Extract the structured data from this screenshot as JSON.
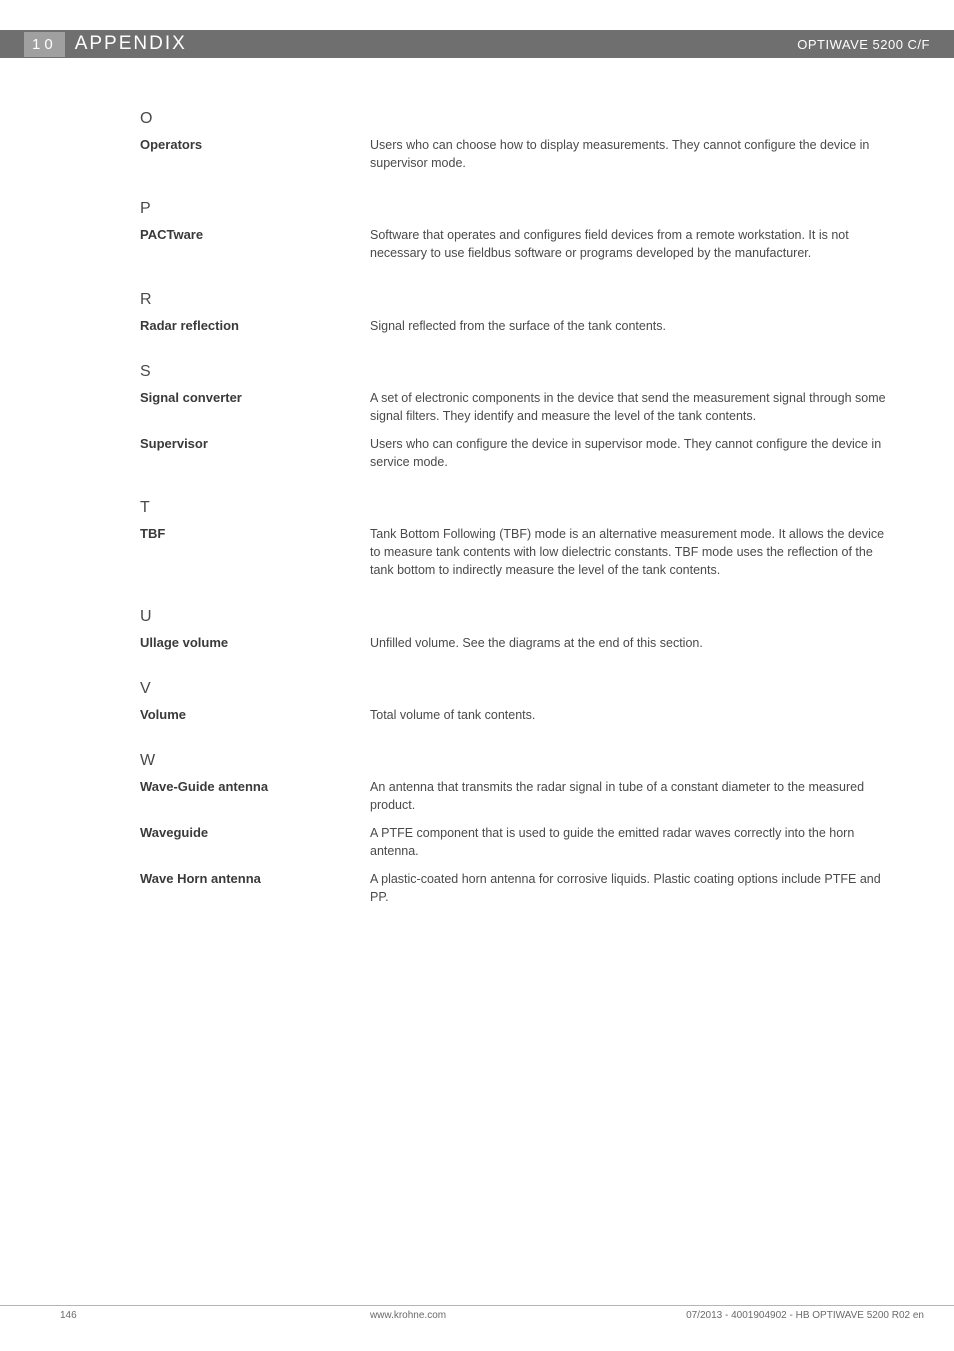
{
  "header": {
    "chapter_number": "10",
    "chapter_title": "APPENDIX",
    "product_name": "OPTIWAVE 5200 C/F"
  },
  "sections": [
    {
      "letter": "O",
      "entries": [
        {
          "term": "Operators",
          "definition": "Users who can choose how to display measurements. They cannot configure the device in supervisor mode."
        }
      ]
    },
    {
      "letter": "P",
      "entries": [
        {
          "term": "PACTware",
          "definition": "Software that operates and configures field devices from a remote workstation. It is not necessary to use fieldbus software or programs developed by the manufacturer."
        }
      ]
    },
    {
      "letter": "R",
      "entries": [
        {
          "term": "Radar reflection",
          "definition": "Signal reflected from the surface of the tank contents."
        }
      ]
    },
    {
      "letter": "S",
      "entries": [
        {
          "term": "Signal converter",
          "definition": "A set of electronic components in the device that send the measurement signal through some signal filters. They identify and measure the level of the tank contents."
        },
        {
          "term": "Supervisor",
          "definition": "Users who can configure the device in supervisor mode. They cannot configure the device in service mode."
        }
      ]
    },
    {
      "letter": "T",
      "entries": [
        {
          "term": "TBF",
          "definition": "Tank Bottom Following (TBF) mode is an alternative measurement mode. It allows the device to measure tank contents with low dielectric constants. TBF mode uses the reflection of the tank bottom to indirectly measure the level of the tank contents."
        }
      ]
    },
    {
      "letter": "U",
      "entries": [
        {
          "term": "Ullage volume",
          "definition": "Unfilled volume. See the diagrams at the end of this section."
        }
      ]
    },
    {
      "letter": "V",
      "entries": [
        {
          "term": "Volume",
          "definition": "Total volume of tank contents."
        }
      ]
    },
    {
      "letter": "W",
      "entries": [
        {
          "term": "Wave-Guide antenna",
          "definition": "An antenna that transmits the radar signal in tube of a constant diameter to the measured product."
        },
        {
          "term": "Waveguide",
          "definition": "A PTFE component that is used to guide the emitted radar waves correctly into the horn antenna."
        },
        {
          "term": "Wave Horn antenna",
          "definition": "A plastic-coated horn antenna for corrosive liquids. Plastic coating options include PTFE and PP."
        }
      ]
    }
  ],
  "footer": {
    "page": "146",
    "url": "www.krohne.com",
    "doc": "07/2013 - 4001904902 - HB OPTIWAVE 5200 R02 en"
  }
}
